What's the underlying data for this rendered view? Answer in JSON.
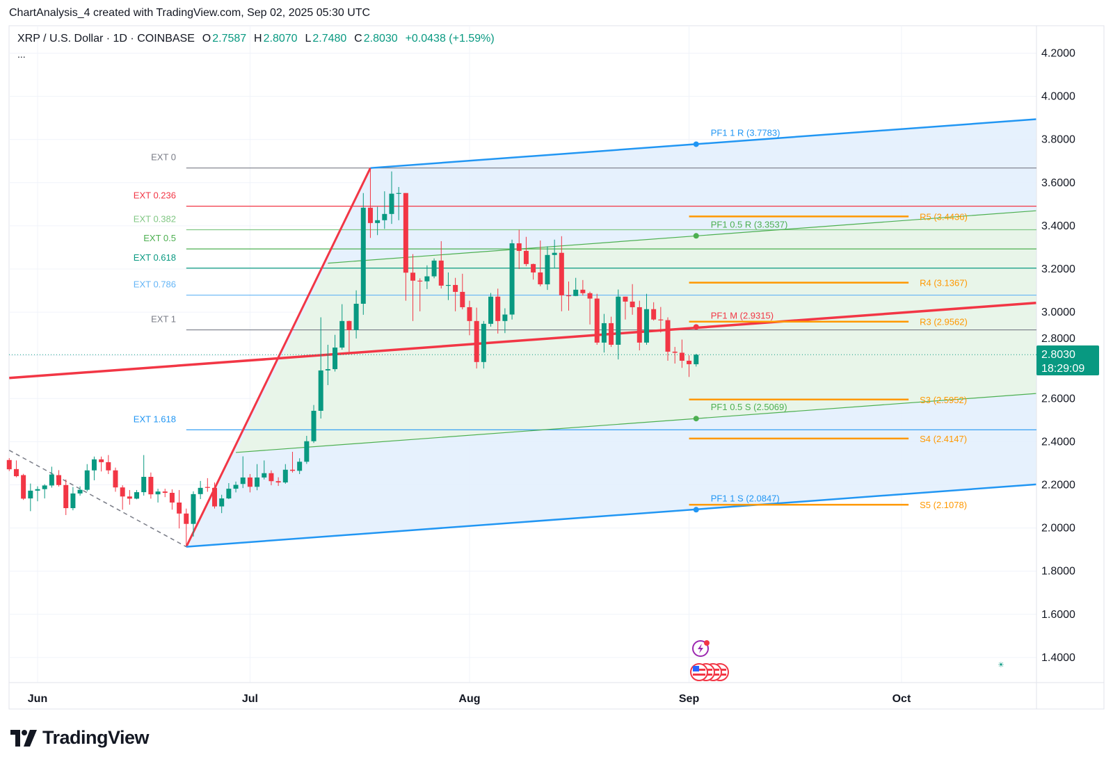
{
  "header": {
    "attribution": "ChartAnalysis_4 created with TradingView.com, Sep 02, 2025 05:30 UTC"
  },
  "legend": {
    "symbol": "XRP / U.S. Dollar · 1D · COINBASE",
    "o_label": "O",
    "o": "2.7587",
    "h_label": "H",
    "h": "2.8070",
    "l_label": "L",
    "l": "2.7480",
    "c_label": "C",
    "c": "2.8030",
    "change": "+0.0438 (+1.59%)",
    "more": "..."
  },
  "branding": {
    "logo_text": "TradingView"
  },
  "colors": {
    "up": "#089981",
    "down": "#f23645",
    "grid": "#f0f3fa",
    "pivot": "#ff9800",
    "band_outer": "#e3f0fd",
    "band_inner": "#e8f5e9"
  },
  "last_price": {
    "value": "2.8030",
    "countdown": "18:29:09",
    "price": 2.803,
    "color": "#089981"
  },
  "icons": {
    "events": "lightning-event-icon",
    "economic": "us-flag-event-icon",
    "theme": "sun-moon-icon"
  },
  "chart_data": {
    "type": "candlestick",
    "symbol": "XRP / U.S. Dollar",
    "interval": "1D",
    "ylim": [
      1.3,
      4.3
    ],
    "xlim": [
      "2025-05-28",
      "2025-10-20"
    ],
    "y_ticks": [
      "4.2000",
      "4.0000",
      "3.8000",
      "3.6000",
      "3.4000",
      "3.2000",
      "3.0000",
      "2.8000",
      "2.6000",
      "2.4000",
      "2.2000",
      "2.0000",
      "1.8000",
      "1.6000",
      "1.4000"
    ],
    "x_ticks": [
      {
        "label": "Jun",
        "date": "2025-06-01"
      },
      {
        "label": "Jul",
        "date": "2025-07-01"
      },
      {
        "label": "Aug",
        "date": "2025-08-01"
      },
      {
        "label": "Sep",
        "date": "2025-09-01"
      },
      {
        "label": "Oct",
        "date": "2025-10-01"
      }
    ],
    "grid": true,
    "candle_fields": [
      "date",
      "open",
      "high",
      "low",
      "close"
    ],
    "candles": [
      [
        "2025-05-28",
        2.315,
        2.324,
        2.264,
        2.272
      ],
      [
        "2025-05-29",
        2.273,
        2.313,
        2.235,
        2.24
      ],
      [
        "2025-05-30",
        2.245,
        2.251,
        2.13,
        2.136
      ],
      [
        "2025-05-31",
        2.137,
        2.206,
        2.078,
        2.173
      ],
      [
        "2025-06-01",
        2.173,
        2.193,
        2.124,
        2.18
      ],
      [
        "2025-06-02",
        2.18,
        2.203,
        2.137,
        2.197
      ],
      [
        "2025-06-03",
        2.197,
        2.284,
        2.187,
        2.248
      ],
      [
        "2025-06-04",
        2.245,
        2.268,
        2.192,
        2.199
      ],
      [
        "2025-06-05",
        2.199,
        2.225,
        2.06,
        2.092
      ],
      [
        "2025-06-06",
        2.092,
        2.19,
        2.082,
        2.16
      ],
      [
        "2025-06-07",
        2.16,
        2.193,
        2.15,
        2.177
      ],
      [
        "2025-06-08",
        2.177,
        2.296,
        2.17,
        2.267
      ],
      [
        "2025-06-09",
        2.267,
        2.331,
        2.221,
        2.318
      ],
      [
        "2025-06-10",
        2.318,
        2.331,
        2.262,
        2.305
      ],
      [
        "2025-06-11",
        2.305,
        2.338,
        2.25,
        2.267
      ],
      [
        "2025-06-12",
        2.267,
        2.28,
        2.168,
        2.188
      ],
      [
        "2025-06-13",
        2.188,
        2.198,
        2.085,
        2.146
      ],
      [
        "2025-06-14",
        2.146,
        2.176,
        2.108,
        2.136
      ],
      [
        "2025-06-15",
        2.136,
        2.176,
        2.133,
        2.166
      ],
      [
        "2025-06-16",
        2.166,
        2.338,
        2.15,
        2.237
      ],
      [
        "2025-06-17",
        2.237,
        2.257,
        2.136,
        2.156
      ],
      [
        "2025-06-18",
        2.156,
        2.182,
        2.118,
        2.169
      ],
      [
        "2025-06-19",
        2.169,
        2.182,
        2.143,
        2.163
      ],
      [
        "2025-06-20",
        2.163,
        2.179,
        2.085,
        2.118
      ],
      [
        "2025-06-21",
        2.118,
        2.176,
        1.998,
        2.067
      ],
      [
        "2025-06-22",
        2.067,
        2.09,
        1.92,
        2.019
      ],
      [
        "2025-06-23",
        2.019,
        2.17,
        1.96,
        2.157
      ],
      [
        "2025-06-24",
        2.157,
        2.218,
        2.134,
        2.186
      ],
      [
        "2025-06-25",
        2.19,
        2.231,
        2.168,
        2.186
      ],
      [
        "2025-06-26",
        2.186,
        2.211,
        2.09,
        2.1
      ],
      [
        "2025-06-27",
        2.1,
        2.154,
        2.069,
        2.137
      ],
      [
        "2025-06-28",
        2.137,
        2.208,
        2.134,
        2.182
      ],
      [
        "2025-06-29",
        2.182,
        2.215,
        2.165,
        2.2
      ],
      [
        "2025-06-30",
        2.204,
        2.332,
        2.185,
        2.234
      ],
      [
        "2025-07-01",
        2.234,
        2.25,
        2.165,
        2.191
      ],
      [
        "2025-07-02",
        2.191,
        2.296,
        2.175,
        2.234
      ],
      [
        "2025-07-03",
        2.234,
        2.313,
        2.225,
        2.254
      ],
      [
        "2025-07-04",
        2.254,
        2.267,
        2.198,
        2.217
      ],
      [
        "2025-07-05",
        2.217,
        2.235,
        2.195,
        2.211
      ],
      [
        "2025-07-06",
        2.211,
        2.296,
        2.205,
        2.27
      ],
      [
        "2025-07-07",
        2.27,
        2.353,
        2.257,
        2.265
      ],
      [
        "2025-07-08",
        2.265,
        2.323,
        2.25,
        2.307
      ],
      [
        "2025-07-09",
        2.307,
        2.427,
        2.297,
        2.402
      ],
      [
        "2025-07-10",
        2.402,
        2.57,
        2.394,
        2.543
      ],
      [
        "2025-07-11",
        2.543,
        2.976,
        2.507,
        2.73
      ],
      [
        "2025-07-12",
        2.73,
        2.849,
        2.662,
        2.736
      ],
      [
        "2025-07-13",
        2.736,
        2.895,
        2.725,
        2.836
      ],
      [
        "2025-07-14",
        2.836,
        3.037,
        2.826,
        2.959
      ],
      [
        "2025-07-15",
        2.959,
        2.961,
        2.816,
        2.917
      ],
      [
        "2025-07-16",
        2.917,
        3.101,
        2.878,
        3.039
      ],
      [
        "2025-07-17",
        3.039,
        3.552,
        2.988,
        3.484
      ],
      [
        "2025-07-18",
        3.484,
        3.668,
        3.344,
        3.413
      ],
      [
        "2025-07-19",
        3.413,
        3.488,
        3.357,
        3.426
      ],
      [
        "2025-07-20",
        3.426,
        3.56,
        3.386,
        3.455
      ],
      [
        "2025-07-21",
        3.455,
        3.652,
        3.409,
        3.549
      ],
      [
        "2025-07-22",
        3.549,
        3.58,
        3.426,
        3.552
      ],
      [
        "2025-07-23",
        3.552,
        3.552,
        3.053,
        3.183
      ],
      [
        "2025-07-24",
        3.183,
        3.269,
        2.959,
        3.146
      ],
      [
        "2025-07-25",
        3.146,
        3.157,
        3.004,
        3.143
      ],
      [
        "2025-07-26",
        3.143,
        3.217,
        3.107,
        3.166
      ],
      [
        "2025-07-27",
        3.166,
        3.249,
        3.157,
        3.239
      ],
      [
        "2025-07-28",
        3.239,
        3.329,
        3.11,
        3.123
      ],
      [
        "2025-07-29",
        3.123,
        3.184,
        3.056,
        3.126
      ],
      [
        "2025-07-30",
        3.126,
        3.159,
        3.004,
        3.094
      ],
      [
        "2025-07-31",
        3.094,
        3.178,
        3.013,
        3.023
      ],
      [
        "2025-08-01",
        3.023,
        3.053,
        2.893,
        2.959
      ],
      [
        "2025-08-02",
        2.959,
        3.021,
        2.739,
        2.769
      ],
      [
        "2025-08-03",
        2.769,
        2.959,
        2.739,
        2.946
      ],
      [
        "2025-08-04",
        2.946,
        3.089,
        2.933,
        3.072
      ],
      [
        "2025-08-05",
        3.072,
        3.109,
        2.901,
        2.959
      ],
      [
        "2025-08-06",
        2.959,
        3.018,
        2.903,
        2.989
      ],
      [
        "2025-08-07",
        2.989,
        3.336,
        2.966,
        3.319
      ],
      [
        "2025-08-08",
        3.319,
        3.382,
        3.2,
        3.284
      ],
      [
        "2025-08-09",
        3.284,
        3.349,
        3.213,
        3.223
      ],
      [
        "2025-08-10",
        3.223,
        3.225,
        3.151,
        3.184
      ],
      [
        "2025-08-11",
        3.184,
        3.332,
        3.12,
        3.129
      ],
      [
        "2025-08-12",
        3.129,
        3.305,
        3.103,
        3.265
      ],
      [
        "2025-08-13",
        3.265,
        3.336,
        3.203,
        3.275
      ],
      [
        "2025-08-14",
        3.275,
        3.352,
        3.004,
        3.078
      ],
      [
        "2025-08-15",
        3.078,
        3.142,
        3.007,
        3.075
      ],
      [
        "2025-08-16",
        3.075,
        3.159,
        3.074,
        3.104
      ],
      [
        "2025-08-17",
        3.104,
        3.149,
        3.077,
        3.088
      ],
      [
        "2025-08-18",
        3.088,
        3.095,
        2.943,
        3.063
      ],
      [
        "2025-08-19",
        3.063,
        3.085,
        2.849,
        2.859
      ],
      [
        "2025-08-20",
        2.859,
        2.992,
        2.813,
        2.949
      ],
      [
        "2025-08-21",
        2.949,
        2.979,
        2.839,
        2.849
      ],
      [
        "2025-08-22",
        2.849,
        3.105,
        2.781,
        3.072
      ],
      [
        "2025-08-23",
        3.072,
        3.072,
        2.966,
        3.049
      ],
      [
        "2025-08-24",
        3.049,
        3.13,
        2.988,
        3.023
      ],
      [
        "2025-08-25",
        3.023,
        3.053,
        2.823,
        2.859
      ],
      [
        "2025-08-26",
        2.859,
        3.085,
        2.849,
        3.014
      ],
      [
        "2025-08-27",
        3.014,
        3.046,
        2.961,
        2.966
      ],
      [
        "2025-08-28",
        2.966,
        3.024,
        2.906,
        2.963
      ],
      [
        "2025-08-29",
        2.963,
        2.976,
        2.775,
        2.817
      ],
      [
        "2025-08-30",
        2.817,
        2.839,
        2.762,
        2.812
      ],
      [
        "2025-08-31",
        2.812,
        2.873,
        2.742,
        2.775
      ],
      [
        "2025-09-01",
        2.775,
        2.8,
        2.7,
        2.759
      ],
      [
        "2025-09-02",
        2.7587,
        2.807,
        2.748,
        2.803
      ]
    ],
    "fib_extension": {
      "start_date": "2025-06-22",
      "levels": [
        {
          "label": "EXT 0",
          "price": 3.668,
          "color": "#787b86"
        },
        {
          "label": "EXT 0.236",
          "price": 3.491,
          "color": "#f23645"
        },
        {
          "label": "EXT 0.382",
          "price": 3.382,
          "color": "#81c784"
        },
        {
          "label": "EXT 0.5",
          "price": 3.293,
          "color": "#4caf50"
        },
        {
          "label": "EXT 0.618",
          "price": 3.204,
          "color": "#089981"
        },
        {
          "label": "EXT 0.786",
          "price": 3.079,
          "color": "#64b5f6"
        },
        {
          "label": "EXT 1",
          "price": 2.918,
          "color": "#787b86"
        },
        {
          "label": "EXT 1.618",
          "price": 2.455,
          "color": "#2196f3"
        }
      ]
    },
    "pitchfork": {
      "handle": {
        "points": [
          [
            "2025-06-22",
            1.913
          ],
          [
            "2025-07-18",
            3.668
          ]
        ],
        "color": "#f23645"
      },
      "median": {
        "points": [
          [
            "2025-05-28",
            2.695
          ],
          [
            "2025-10-20",
            3.043
          ]
        ],
        "color": "#f23645"
      },
      "upper": {
        "points": [
          [
            "2025-07-18",
            3.668
          ],
          [
            "2025-10-20",
            3.894
          ]
        ],
        "color": "#2196f3"
      },
      "lower": {
        "points": [
          [
            "2025-06-22",
            1.913
          ],
          [
            "2025-10-20",
            2.202
          ]
        ],
        "color": "#2196f3"
      },
      "half_upper": {
        "points": [
          [
            "2025-07-12",
            3.227
          ],
          [
            "2025-10-20",
            3.47
          ]
        ],
        "color": "#4caf50"
      },
      "half_lower": {
        "points": [
          [
            "2025-06-29",
            2.35
          ],
          [
            "2025-10-20",
            2.623
          ]
        ],
        "color": "#4caf50"
      },
      "prior_trend": {
        "points": [
          [
            "2025-05-28",
            2.36
          ],
          [
            "2025-06-22",
            1.913
          ]
        ],
        "color": "#787b86",
        "style": "dashed"
      },
      "markers": [
        {
          "label": "PF1 1 R (3.7783)",
          "date": "2025-09-02",
          "price": 3.7783,
          "color": "#2196f3"
        },
        {
          "label": "PF1 0.5 R (3.3537)",
          "date": "2025-09-02",
          "price": 3.3537,
          "color": "#4caf50"
        },
        {
          "label": "PF1 M (2.9315)",
          "date": "2025-09-02",
          "price": 2.9315,
          "color": "#f23645"
        },
        {
          "label": "PF1 0.5 S (2.5069)",
          "date": "2025-09-02",
          "price": 2.5069,
          "color": "#4caf50"
        },
        {
          "label": "PF1 1 S (2.0847)",
          "date": "2025-09-02",
          "price": 2.0847,
          "color": "#2196f3"
        }
      ]
    },
    "pivots": {
      "from": "2025-09-01",
      "to": "2025-10-02",
      "levels": [
        {
          "label": "R5 (3.4436)",
          "price": 3.4436
        },
        {
          "label": "R4 (3.1367)",
          "price": 3.1367
        },
        {
          "label": "R3 (2.9562)",
          "price": 2.9562
        },
        {
          "label": "S3 (2.5952)",
          "price": 2.5952
        },
        {
          "label": "S4 (2.4147)",
          "price": 2.4147
        },
        {
          "label": "S5 (2.1078)",
          "price": 2.1078
        }
      ]
    }
  }
}
